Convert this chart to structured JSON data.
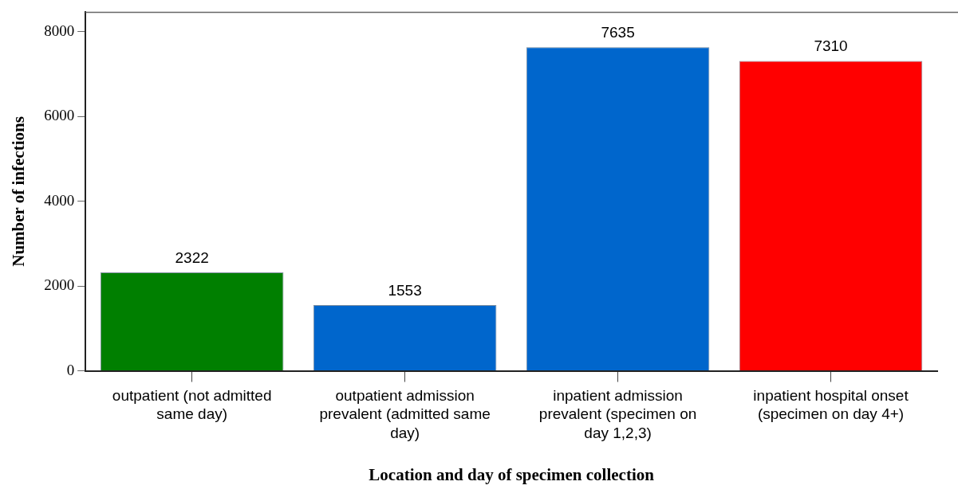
{
  "chart_data": {
    "type": "bar",
    "xlabel": "Location and day of specimen collection",
    "ylabel": "Number of infections",
    "categories": [
      "outpatient (not admitted same day)",
      "outpatient admission prevalent (admitted same day)",
      "inpatient admission prevalent (specimen on day 1,2,3)",
      "inpatient hospital onset (specimen on day 4+)"
    ],
    "values": [
      2322,
      1553,
      7635,
      7310
    ],
    "colors": [
      "#007f00",
      "#0066cc",
      "#0066cc",
      "#ff0000"
    ],
    "ylim": [
      0,
      8460
    ],
    "yticks": [
      0,
      2000,
      4000,
      6000,
      8000
    ],
    "data_labels": true,
    "grid": false,
    "legend": false
  }
}
